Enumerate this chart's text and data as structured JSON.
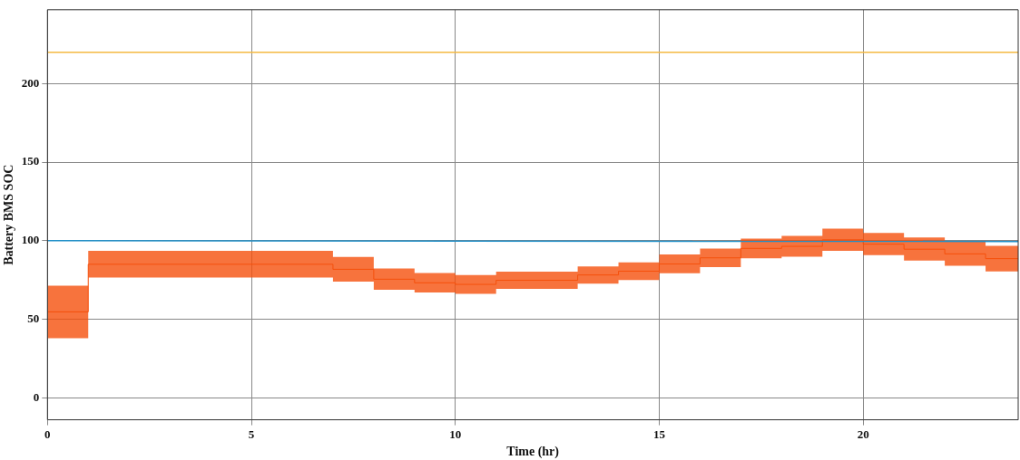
{
  "chart_data": {
    "type": "line",
    "xlabel": "Time (hr)",
    "ylabel": "Battery BMS SOC",
    "xlim": [
      0,
      23.8
    ],
    "ylim": [
      -14,
      247
    ],
    "xticks": [
      0,
      5,
      10,
      15,
      20
    ],
    "yticks": [
      0,
      50,
      100,
      150,
      200
    ],
    "grid": true,
    "legend": false,
    "marker": "none",
    "series": [
      {
        "color": "#f5b942",
        "x": [
          0,
          23.8
        ],
        "values": [
          220,
          220
        ]
      },
      {
        "color": "#1f8fc8",
        "x": [
          0,
          23.8
        ],
        "values": [
          100,
          99.5
        ]
      },
      {
        "type": "step",
        "color": "#f5500c",
        "x": [
          0,
          1,
          7,
          8,
          9,
          10,
          11,
          13,
          14,
          15,
          16,
          17,
          18,
          19,
          20,
          21,
          22,
          23,
          23.8
        ],
        "values": [
          54.7,
          85,
          81.8,
          75.5,
          73.2,
          72.2,
          74.8,
          78.2,
          80.6,
          85.2,
          89.1,
          95.1,
          96.4,
          100.6,
          97.8,
          94.6,
          91.6,
          88.6,
          88.6
        ],
        "upper": [
          71.4,
          93.6,
          89.6,
          82.3,
          79.4,
          78.2,
          80.3,
          83.6,
          86.2,
          91.2,
          95,
          101.4,
          103,
          107.7,
          104.9,
          102,
          99.3,
          96.7,
          96.7
        ],
        "lower": [
          38,
          76.5,
          74,
          68.8,
          67,
          66.2,
          69.4,
          72.7,
          75,
          79.3,
          83.2,
          88.8,
          89.8,
          93.5,
          90.8,
          87.3,
          84,
          80.4,
          80.4
        ]
      }
    ]
  }
}
